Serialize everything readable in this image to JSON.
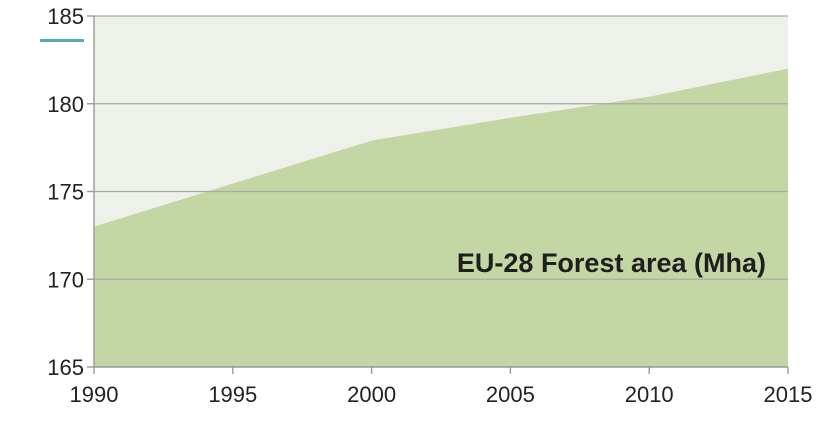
{
  "chart_data": {
    "type": "area",
    "title": "",
    "xlabel": "",
    "ylabel": "",
    "annotation": "EU-28 Forest area (Mha)",
    "x": [
      1990,
      2000,
      2005,
      2010,
      2015
    ],
    "series": [
      {
        "values": [
          173.0,
          177.9,
          179.2,
          180.4,
          182.0
        ]
      }
    ],
    "xlim": [
      1990,
      2015
    ],
    "ylim": [
      165,
      185
    ],
    "x_ticks": [
      "1990",
      "1995",
      "2000",
      "2005",
      "2010",
      "2015"
    ],
    "y_ticks": [
      "165",
      "170",
      "175",
      "180",
      "185"
    ],
    "grid": "horizontal",
    "colors": {
      "area_fill": "#c4d6a3",
      "plot_background": "#eef1ea",
      "gridline": "#a9aba6",
      "axis": "#999999",
      "accent_mark": "#57a9b8"
    }
  }
}
